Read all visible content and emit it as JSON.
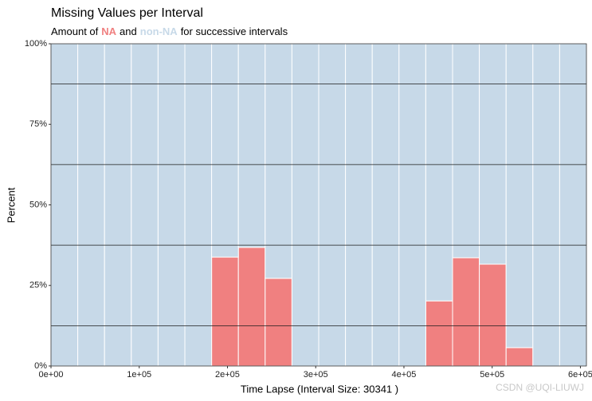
{
  "chart_data": {
    "type": "histogram",
    "title": "Missing Values per Interval",
    "subtitle_before": "Amount of",
    "subtitle_middle": "and",
    "subtitle_after": "for successive intervals",
    "xlabel": "Time Lapse (Interval Size: 30341 )",
    "ylabel": "Percent",
    "bins": [
      0,
      30341,
      60682,
      91023,
      121364,
      151705,
      182046,
      212387,
      242728,
      273069,
      303410,
      333751,
      364092,
      394433,
      424774,
      455115,
      485456,
      515797,
      546138,
      576479,
      606820
    ],
    "series": [
      {
        "name": "NA",
        "color": "#f08080",
        "values": [
          0,
          0,
          0,
          0,
          0,
          0,
          33.8,
          36.8,
          27.2,
          0,
          0,
          0,
          0,
          0,
          20.2,
          33.6,
          31.6,
          5.7,
          0,
          0
        ]
      },
      {
        "name": "non-NA",
        "color": "#c7d9e8",
        "values": [
          100,
          100,
          100,
          100,
          100,
          100,
          66.2,
          63.2,
          72.8,
          100,
          100,
          100,
          100,
          100,
          79.8,
          66.4,
          68.4,
          94.3,
          100,
          100
        ]
      }
    ],
    "stacked": true,
    "xlim": [
      0,
      606820
    ],
    "ylim": [
      0,
      100
    ],
    "xticks": [
      {
        "value": 0,
        "label": "0e+00"
      },
      {
        "value": 100000,
        "label": "1e+05"
      },
      {
        "value": 200000,
        "label": "2e+05"
      },
      {
        "value": 300000,
        "label": "3e+05"
      },
      {
        "value": 400000,
        "label": "4e+05"
      },
      {
        "value": 500000,
        "label": "5e+05"
      },
      {
        "value": 600000,
        "label": "6e+05"
      }
    ],
    "yticks": [
      {
        "value": 0,
        "label": "0%"
      },
      {
        "value": 25,
        "label": "25%"
      },
      {
        "value": 50,
        "label": "50%"
      },
      {
        "value": 75,
        "label": "75%"
      },
      {
        "value": 100,
        "label": "100%"
      }
    ],
    "y_minor_grid": [
      12.5,
      37.5,
      62.5,
      87.5
    ],
    "watermark": "CSDN @UQI-LIUWJ"
  }
}
